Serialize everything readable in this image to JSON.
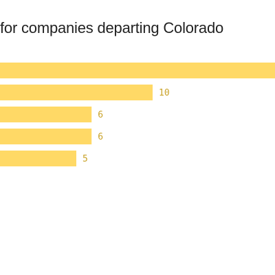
{
  "chart_data": {
    "type": "bar",
    "orientation": "horizontal",
    "title": "for companies departing Colorado",
    "bar_color": "#ffd966",
    "label_color": "#c9a227",
    "values": [
      null,
      10,
      6,
      6,
      5
    ],
    "value_labels": [
      "",
      "10",
      "6",
      "6",
      "5"
    ],
    "xlim": [
      0,
      10
    ]
  }
}
